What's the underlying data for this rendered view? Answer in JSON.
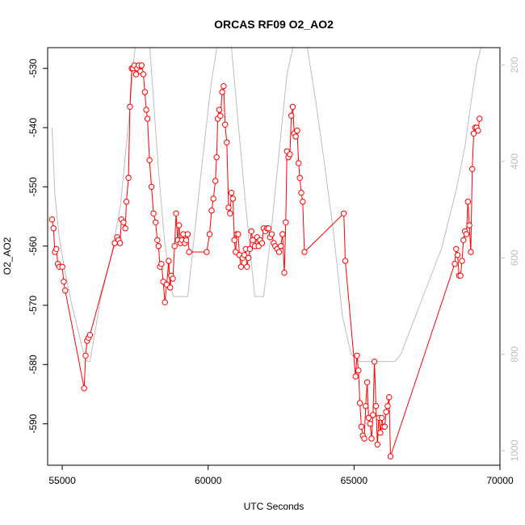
{
  "chart_data": {
    "type": "scatter",
    "title": "ORCAS RF09 O2_AO2",
    "xlabel": "UTC Seconds",
    "ylabel": "O2_AO2",
    "xlim": [
      54500,
      70000
    ],
    "ylim": [
      -597,
      -526.5
    ],
    "x_ticks": [
      55000,
      60000,
      65000,
      70000
    ],
    "y_ticks": [
      -590,
      -580,
      -570,
      -560,
      -550,
      -540,
      -530
    ],
    "y2_ticks": [
      200,
      400,
      600,
      800,
      1000
    ],
    "y2lim": [
      1030,
      164
    ],
    "colors": {
      "series": "#ff0000",
      "secondary": "#bebebe",
      "axis": "#000000",
      "right_axis": "#bebebe"
    },
    "series": [
      {
        "values": [
          [
            54650,
            -555.5
          ],
          [
            54700,
            -557
          ],
          [
            54750,
            -561
          ],
          [
            54800,
            -560.5
          ],
          [
            54850,
            -563
          ],
          [
            54900,
            -563.5
          ],
          [
            55000,
            -563.5
          ],
          [
            55050,
            -566
          ],
          [
            55100,
            -567.5
          ],
          [
            55750,
            -584
          ],
          [
            55800,
            -578.5
          ],
          [
            55850,
            -576
          ],
          [
            55900,
            -575.5
          ],
          [
            55950,
            -575
          ],
          [
            56800,
            -559.5
          ],
          [
            56880,
            -558.5
          ],
          [
            56930,
            -559
          ],
          [
            56980,
            -559.5
          ],
          [
            57030,
            -555.5
          ],
          [
            57100,
            -556
          ],
          [
            57160,
            -557
          ],
          [
            57200,
            -552.5
          ],
          [
            57270,
            -548.5
          ],
          [
            57320,
            -536.5
          ],
          [
            57380,
            -530
          ],
          [
            57420,
            -530
          ],
          [
            57470,
            -529.5
          ],
          [
            57530,
            -531
          ],
          [
            57570,
            -530
          ],
          [
            57620,
            -529.5
          ],
          [
            57680,
            -530.5
          ],
          [
            57720,
            -529.5
          ],
          [
            57780,
            -531
          ],
          [
            57830,
            -534
          ],
          [
            57880,
            -537
          ],
          [
            57920,
            -538.5
          ],
          [
            57990,
            -545.5
          ],
          [
            58060,
            -550
          ],
          [
            58130,
            -554.5
          ],
          [
            58200,
            -556
          ],
          [
            58260,
            -559
          ],
          [
            58300,
            -560
          ],
          [
            58350,
            -563.5
          ],
          [
            58400,
            -563
          ],
          [
            58460,
            -566
          ],
          [
            58520,
            -569.5
          ],
          [
            58580,
            -566.5
          ],
          [
            58650,
            -562.5
          ],
          [
            58700,
            -567
          ],
          [
            58730,
            -565
          ],
          [
            58790,
            -565.5
          ],
          [
            58850,
            -560
          ],
          [
            58900,
            -554.5
          ],
          [
            58960,
            -559
          ],
          [
            59000,
            -556.5
          ],
          [
            59050,
            -559.5
          ],
          [
            59100,
            -559
          ],
          [
            59150,
            -558
          ],
          [
            59200,
            -559.5
          ],
          [
            59250,
            -559
          ],
          [
            59300,
            -558
          ],
          [
            59350,
            -561
          ],
          [
            59950,
            -561
          ],
          [
            60050,
            -558
          ],
          [
            60120,
            -554
          ],
          [
            60180,
            -552
          ],
          [
            60250,
            -549
          ],
          [
            60290,
            -545
          ],
          [
            60330,
            -538.5
          ],
          [
            60380,
            -537
          ],
          [
            60420,
            -538
          ],
          [
            60480,
            -534
          ],
          [
            60530,
            -533
          ],
          [
            60580,
            -539.5
          ],
          [
            60640,
            -542.5
          ],
          [
            60700,
            -553.5
          ],
          [
            60750,
            -554.5
          ],
          [
            60800,
            -551
          ],
          [
            60850,
            -552
          ],
          [
            60900,
            -559
          ],
          [
            60940,
            -561
          ],
          [
            60980,
            -558
          ],
          [
            61030,
            -558
          ],
          [
            61070,
            -561.5
          ],
          [
            61130,
            -563.5
          ],
          [
            61180,
            -562
          ],
          [
            61240,
            -561.5
          ],
          [
            61290,
            -560.5
          ],
          [
            61330,
            -563.5
          ],
          [
            61380,
            -562
          ],
          [
            61430,
            -560.5
          ],
          [
            61480,
            -557.5
          ],
          [
            61530,
            -559
          ],
          [
            61600,
            -560
          ],
          [
            61680,
            -558.5
          ],
          [
            61730,
            -560
          ],
          [
            61780,
            -559
          ],
          [
            61850,
            -559.5
          ],
          [
            61900,
            -557
          ],
          [
            61960,
            -557.5
          ],
          [
            62020,
            -557
          ],
          [
            62070,
            -557
          ],
          [
            62120,
            -558.5
          ],
          [
            62180,
            -558
          ],
          [
            62250,
            -559.5
          ],
          [
            62300,
            -560
          ],
          [
            62370,
            -560.5
          ],
          [
            62430,
            -561
          ],
          [
            62490,
            -560
          ],
          [
            62550,
            -558
          ],
          [
            62610,
            -564.5
          ],
          [
            62660,
            -556
          ],
          [
            62700,
            -544
          ],
          [
            62750,
            -545
          ],
          [
            62800,
            -544.5
          ],
          [
            62850,
            -538
          ],
          [
            62900,
            -536.5
          ],
          [
            62950,
            -541
          ],
          [
            63000,
            -541.5
          ],
          [
            63050,
            -540.5
          ],
          [
            63100,
            -546
          ],
          [
            63140,
            -548.5
          ],
          [
            63190,
            -551
          ],
          [
            63240,
            -552.5
          ],
          [
            63300,
            -561
          ],
          [
            64650,
            -554.5
          ],
          [
            64700,
            -562.5
          ],
          [
            65050,
            -582
          ],
          [
            65100,
            -578.5
          ],
          [
            65150,
            -581
          ],
          [
            65200,
            -586.5
          ],
          [
            65250,
            -590.5
          ],
          [
            65300,
            -592
          ],
          [
            65350,
            -592.5
          ],
          [
            65400,
            -587
          ],
          [
            65450,
            -583
          ],
          [
            65500,
            -589
          ],
          [
            65550,
            -590
          ],
          [
            65600,
            -592.5
          ],
          [
            65650,
            -588.5
          ],
          [
            65700,
            -579.5
          ],
          [
            65750,
            -587
          ],
          [
            65800,
            -593.5
          ],
          [
            65850,
            -589
          ],
          [
            65900,
            -591.5
          ],
          [
            65950,
            -589
          ],
          [
            66000,
            -590.5
          ],
          [
            66050,
            -590.5
          ],
          [
            66100,
            -588
          ],
          [
            66150,
            -587
          ],
          [
            66200,
            -585.5
          ],
          [
            66250,
            -595.5
          ],
          [
            68450,
            -563
          ],
          [
            68500,
            -560.5
          ],
          [
            68550,
            -561.5
          ],
          [
            68600,
            -565
          ],
          [
            68650,
            -565
          ],
          [
            68700,
            -562.5
          ],
          [
            68750,
            -559
          ],
          [
            68800,
            -557.5
          ],
          [
            68850,
            -558
          ],
          [
            68900,
            -552.5
          ],
          [
            68950,
            -556.5
          ],
          [
            69000,
            -561
          ],
          [
            69050,
            -547
          ],
          [
            69100,
            -541
          ],
          [
            69150,
            -540
          ],
          [
            69200,
            -540
          ],
          [
            69250,
            -540.5
          ],
          [
            69300,
            -538.5
          ]
        ]
      },
      {
        "values": [
          [
            54650,
            330
          ],
          [
            54750,
            470
          ],
          [
            54900,
            560
          ],
          [
            55100,
            630
          ],
          [
            55300,
            690
          ],
          [
            55500,
            740
          ],
          [
            55700,
            790
          ],
          [
            55850,
            815
          ],
          [
            55950,
            815
          ],
          [
            56050,
            780
          ],
          [
            56300,
            690
          ],
          [
            56700,
            590
          ],
          [
            57000,
            490
          ],
          [
            57300,
            300
          ],
          [
            57450,
            190
          ],
          [
            57500,
            164
          ],
          [
            58000,
            164
          ],
          [
            58100,
            250
          ],
          [
            58300,
            420
          ],
          [
            58500,
            560
          ],
          [
            58700,
            650
          ],
          [
            58800,
            680
          ],
          [
            58900,
            680
          ],
          [
            59000,
            680
          ],
          [
            59300,
            680
          ],
          [
            59500,
            570
          ],
          [
            59800,
            400
          ],
          [
            60100,
            240
          ],
          [
            60300,
            164
          ],
          [
            60800,
            164
          ],
          [
            61000,
            300
          ],
          [
            61300,
            500
          ],
          [
            61600,
            680
          ],
          [
            61750,
            680
          ],
          [
            61900,
            680
          ],
          [
            62100,
            580
          ],
          [
            62400,
            400
          ],
          [
            62700,
            220
          ],
          [
            62900,
            164
          ],
          [
            63400,
            164
          ],
          [
            63700,
            280
          ],
          [
            64000,
            410
          ],
          [
            64300,
            550
          ],
          [
            64600,
            720
          ],
          [
            64900,
            800
          ],
          [
            65200,
            815
          ],
          [
            66400,
            815
          ],
          [
            66600,
            800
          ],
          [
            67300,
            690
          ],
          [
            68000,
            580
          ],
          [
            68500,
            460
          ],
          [
            68800,
            370
          ],
          [
            69000,
            280
          ],
          [
            69200,
            200
          ],
          [
            69350,
            164
          ]
        ]
      }
    ]
  }
}
